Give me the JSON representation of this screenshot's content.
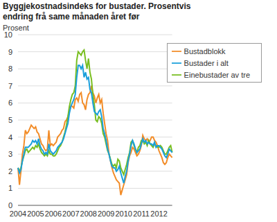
{
  "chart_data": {
    "type": "line",
    "title": "Byggjekostnadsindeks for bustader. Prosentvis endring frå same månaden året før",
    "y_label": "Prosent",
    "categories": [
      "2004",
      null,
      null,
      null,
      null,
      null,
      null,
      null,
      null,
      null,
      null,
      null,
      "2005",
      null,
      null,
      null,
      null,
      null,
      null,
      null,
      null,
      null,
      null,
      null,
      "2006",
      null,
      null,
      null,
      null,
      null,
      null,
      null,
      null,
      null,
      null,
      null,
      "2007",
      null,
      null,
      null,
      null,
      null,
      null,
      null,
      null,
      null,
      null,
      null,
      "2008",
      null,
      null,
      null,
      null,
      null,
      null,
      null,
      null,
      null,
      null,
      null,
      "2009",
      null,
      null,
      null,
      null,
      null,
      null,
      null,
      null,
      null,
      null,
      null,
      "2010",
      null,
      null,
      null,
      null,
      null,
      null,
      null,
      null,
      null,
      null,
      null,
      "2011",
      null,
      null,
      null,
      null,
      null,
      null,
      null,
      null,
      null,
      null,
      null,
      "2012",
      null,
      null,
      null,
      null,
      null,
      null,
      null,
      null,
      null
    ],
    "series": [
      {
        "name": "Bustadblokk",
        "color": "#f28c28",
        "values": [
          2.2,
          1.2,
          2.0,
          3.0,
          3.5,
          4.4,
          4.2,
          4.3,
          4.5,
          4.7,
          4.6,
          4.5,
          4.6,
          4.3,
          4.2,
          3.9,
          3.6,
          3.5,
          3.3,
          3.2,
          3.3,
          4.4,
          3.5,
          3.6,
          3.5,
          3.6,
          3.7,
          4.0,
          4.1,
          4.2,
          4.4,
          4.5,
          4.9,
          5.0,
          5.2,
          5.5,
          5.8,
          5.8,
          5.7,
          6.2,
          6.3,
          6.1,
          6.5,
          6.6,
          6.0,
          5.9,
          5.6,
          6.2,
          6.5,
          6.6,
          7.0,
          6.6,
          6.4,
          6.0,
          6.3,
          6.5,
          6.0,
          6.2,
          5.4,
          4.8,
          4.2,
          3.8,
          3.0,
          2.6,
          2.2,
          1.9,
          1.7,
          1.5,
          1.4,
          1.3,
          0.6,
          0.9,
          1.2,
          1.5,
          1.8,
          2.5,
          2.9,
          3.1,
          3.4,
          3.3,
          3.1,
          2.9,
          3.0,
          3.2,
          3.5,
          4.1,
          3.9,
          3.8,
          3.9,
          3.7,
          3.8,
          4.0,
          4.0,
          3.8,
          3.7,
          3.5,
          3.2,
          3.0,
          2.8,
          2.5,
          2.4,
          2.5,
          2.8,
          3.0,
          2.9,
          2.8
        ]
      },
      {
        "name": "Einebustader av tre",
        "color": "#78be20",
        "values": [
          2.2,
          2.0,
          2.2,
          2.6,
          2.9,
          3.2,
          3.3,
          3.1,
          3.2,
          3.3,
          3.4,
          3.3,
          3.5,
          3.4,
          3.6,
          3.3,
          3.1,
          3.0,
          2.9,
          3.0,
          2.9,
          3.2,
          3.0,
          3.0,
          2.9,
          2.9,
          3.0,
          3.2,
          3.4,
          3.5,
          3.7,
          4.0,
          4.3,
          4.7,
          5.2,
          5.8,
          6.2,
          6.5,
          6.6,
          7.0,
          8.5,
          9.0,
          8.9,
          8.8,
          9.0,
          9.1,
          8.5,
          8.0,
          8.6,
          7.8,
          7.4,
          6.5,
          5.9,
          5.0,
          4.9,
          5.2,
          5.1,
          4.8,
          4.2,
          4.0,
          3.6,
          3.2,
          3.0,
          2.7,
          2.4,
          2.3,
          2.4,
          2.2,
          2.7,
          2.6,
          2.2,
          2.0,
          1.8,
          2.1,
          2.4,
          2.8,
          3.1,
          3.7,
          3.8,
          3.5,
          3.3,
          3.1,
          3.4,
          3.5,
          3.8,
          3.8,
          3.6,
          3.7,
          3.5,
          3.8,
          3.6,
          3.5,
          3.4,
          3.6,
          3.5,
          3.4,
          3.4,
          3.5,
          3.4,
          3.2,
          3.0,
          3.0,
          3.2,
          3.4,
          3.5,
          3.1
        ]
      },
      {
        "name": "Bustader i alt",
        "color": "#1a9fdb",
        "values": [
          2.2,
          1.9,
          2.1,
          2.6,
          3.0,
          3.4,
          3.4,
          3.4,
          3.5,
          3.6,
          3.8,
          3.7,
          3.8,
          3.6,
          3.9,
          3.5,
          3.3,
          3.2,
          3.0,
          3.1,
          3.0,
          3.6,
          3.2,
          3.1,
          3.0,
          3.1,
          3.2,
          3.4,
          3.5,
          3.6,
          3.7,
          3.9,
          4.2,
          4.5,
          4.8,
          5.4,
          5.8,
          6.0,
          6.2,
          6.5,
          7.5,
          8.2,
          8.2,
          8.0,
          8.2,
          7.5,
          7.8,
          7.4,
          7.5,
          6.8,
          6.6,
          6.0,
          5.5,
          5.4,
          5.3,
          5.5,
          5.6,
          5.2,
          4.5,
          4.2,
          3.8,
          3.3,
          3.0,
          2.6,
          2.3,
          2.2,
          2.2,
          2.0,
          2.1,
          2.3,
          1.9,
          1.6,
          1.3,
          1.7,
          2.0,
          2.6,
          3.0,
          3.5,
          3.8,
          3.6,
          3.3,
          3.1,
          3.2,
          3.3,
          3.6,
          3.9,
          3.7,
          3.8,
          3.6,
          3.7,
          3.6,
          3.6,
          3.5,
          3.7,
          3.4,
          3.5,
          3.5,
          3.4,
          3.3,
          3.1,
          2.9,
          2.8,
          3.0,
          3.3,
          3.2,
          3.1
        ]
      }
    ],
    "ylim": [
      0,
      10
    ],
    "yticks": [
      0,
      1,
      2,
      3,
      4,
      5,
      6,
      7,
      8,
      9,
      10
    ],
    "grid": true,
    "legend": "top-right"
  }
}
